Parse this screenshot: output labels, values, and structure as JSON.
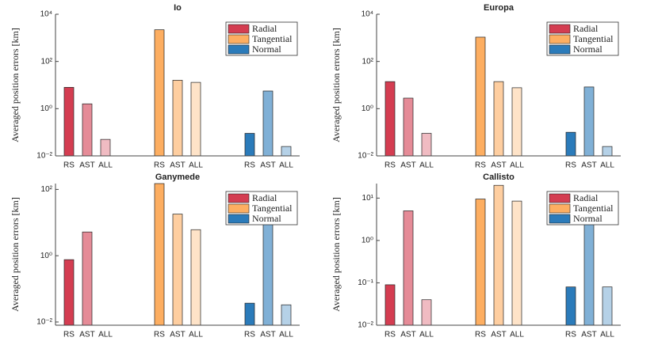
{
  "chart_data": [
    {
      "type": "bar",
      "title": "Io",
      "y_label": "Averaged position errors [km]",
      "log_scale": true,
      "categories": [
        "RS",
        "AST",
        "ALL"
      ],
      "series": [
        {
          "name": "Radial",
          "color": "#d43d51",
          "values": [
            8,
            1.6,
            0.05
          ]
        },
        {
          "name": "Tangential",
          "color": "#fdae61",
          "values": [
            2200,
            16,
            13
          ]
        },
        {
          "name": "Normal",
          "color": "#2b7bba",
          "values": [
            0.09,
            5.6,
            0.025
          ]
        }
      ],
      "ylim": [
        0.01,
        10000
      ],
      "yticks": [
        {
          "value": 0.01,
          "label": "10⁻²"
        },
        {
          "value": 1,
          "label": "10⁰"
        },
        {
          "value": 100,
          "label": "10²"
        },
        {
          "value": 10000,
          "label": "10⁴"
        }
      ],
      "legend": "upper right"
    },
    {
      "type": "bar",
      "title": "Europa",
      "y_label": "Averaged position errors [km]",
      "log_scale": true,
      "categories": [
        "RS",
        "AST",
        "ALL"
      ],
      "series": [
        {
          "name": "Radial",
          "color": "#d43d51",
          "values": [
            14,
            2.8,
            0.09
          ]
        },
        {
          "name": "Tangential",
          "color": "#fdae61",
          "values": [
            1070,
            14,
            7.7
          ]
        },
        {
          "name": "Normal",
          "color": "#2b7bba",
          "values": [
            0.1,
            8.3,
            0.025
          ]
        }
      ],
      "ylim": [
        0.01,
        10000
      ],
      "yticks": [
        {
          "value": 0.01,
          "label": "10⁻²"
        },
        {
          "value": 1,
          "label": "10⁰"
        },
        {
          "value": 100,
          "label": "10²"
        },
        {
          "value": 10000,
          "label": "10⁴"
        }
      ],
      "legend": "upper right"
    },
    {
      "type": "bar",
      "title": "Ganymede",
      "y_label": "Averaged position errors [km]",
      "log_scale": true,
      "categories": [
        "RS",
        "AST",
        "ALL"
      ],
      "series": [
        {
          "name": "Radial",
          "color": "#d43d51",
          "values": [
            0.76,
            5.2,
            null
          ]
        },
        {
          "name": "Tangential",
          "color": "#fdae61",
          "values": [
            150,
            18,
            6.1
          ]
        },
        {
          "name": "Normal",
          "color": "#2b7bba",
          "values": [
            0.037,
            10,
            0.033
          ]
        }
      ],
      "ylim": [
        0.008,
        150
      ],
      "yticks": [
        {
          "value": 0.01,
          "label": "10⁻²"
        },
        {
          "value": 1,
          "label": "10⁰"
        },
        {
          "value": 100,
          "label": "10²"
        }
      ],
      "legend": "upper right"
    },
    {
      "type": "bar",
      "title": "Callisto",
      "y_label": "Averaged position errors [km]",
      "log_scale": true,
      "categories": [
        "RS",
        "AST",
        "ALL"
      ],
      "series": [
        {
          "name": "Radial",
          "color": "#d43d51",
          "values": [
            0.09,
            5,
            0.04
          ]
        },
        {
          "name": "Tangential",
          "color": "#fdae61",
          "values": [
            9.5,
            20,
            8.5
          ]
        },
        {
          "name": "Normal",
          "color": "#2b7bba",
          "values": [
            0.08,
            5,
            0.08
          ]
        }
      ],
      "ylim": [
        0.01,
        22
      ],
      "yticks": [
        {
          "value": 0.01,
          "label": "10⁻²"
        },
        {
          "value": 0.1,
          "label": "10⁻¹"
        },
        {
          "value": 1,
          "label": "10⁰"
        },
        {
          "value": 10,
          "label": "10¹"
        }
      ],
      "legend": "upper right"
    }
  ]
}
